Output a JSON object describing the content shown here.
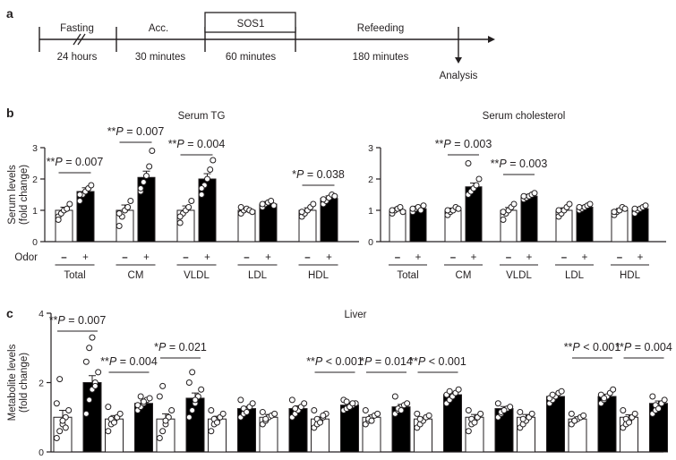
{
  "panel_a": {
    "letter": "a",
    "phases": [
      {
        "label": "Fasting",
        "duration": "24 hours"
      },
      {
        "label": "Acc.",
        "duration": "30 minutes"
      },
      {
        "label": "SOS1",
        "duration": "60 minutes"
      },
      {
        "label": "Refeeding",
        "duration": "180 minutes"
      }
    ],
    "end_label": "Analysis"
  },
  "panel_b": {
    "letter": "b"
  },
  "panel_c": {
    "letter": "c"
  },
  "odor_label": "Odor",
  "minus_sign": "–",
  "plus_sign": "+",
  "colors": {
    "ink": "#231f20",
    "odor_minus_fill": "#ffffff",
    "odor_plus_fill": "#000000"
  },
  "chart_data": [
    {
      "type": "bar",
      "title": "Serum TG",
      "ylabel": "Serum levels (fold change)",
      "ylim": [
        0,
        3
      ],
      "yticks": [
        "0",
        "1",
        "2",
        "3"
      ],
      "categories": [
        "Total",
        "CM",
        "VLDL",
        "LDL",
        "HDL"
      ],
      "series": [
        {
          "name": "–",
          "values": [
            1.0,
            1.0,
            1.0,
            1.0,
            1.0
          ],
          "errors": [
            0.1,
            0.17,
            0.14,
            0.05,
            0.08
          ]
        },
        {
          "name": "+",
          "values": [
            1.6,
            2.05,
            2.0,
            1.2,
            1.38
          ],
          "errors": [
            0.12,
            0.2,
            0.17,
            0.06,
            0.08
          ]
        }
      ],
      "points": [
        [
          [
            0.8,
            0.9,
            1.0,
            1.05,
            1.2,
            0.7
          ],
          [
            1.3,
            1.5,
            1.6,
            1.7,
            1.8,
            1.5
          ]
        ],
        [
          [
            0.5,
            0.8,
            1.0,
            1.1,
            1.3,
            0.9
          ],
          [
            1.6,
            1.9,
            2.1,
            2.4,
            2.9,
            1.7
          ]
        ],
        [
          [
            0.6,
            0.9,
            1.0,
            1.1,
            1.3,
            0.8
          ],
          [
            1.5,
            1.8,
            2.0,
            2.3,
            2.6,
            1.7
          ]
        ],
        [
          [
            0.9,
            1.0,
            1.05,
            1.0,
            0.95,
            1.1
          ],
          [
            1.1,
            1.2,
            1.25,
            1.3,
            1.15,
            1.2
          ]
        ],
        [
          [
            0.8,
            0.9,
            1.0,
            1.1,
            1.2,
            0.95
          ],
          [
            1.2,
            1.3,
            1.4,
            1.5,
            1.45,
            1.35
          ]
        ]
      ],
      "annotations": [
        {
          "stars": "**",
          "text": " = 0.007",
          "pair": 0
        },
        {
          "stars": "**",
          "text": " = 0.007",
          "pair": 1
        },
        {
          "stars": "**",
          "text": " = 0.004",
          "pair": 2
        },
        {
          "stars": "*",
          "text": " = 0.038",
          "pair": 4
        }
      ]
    },
    {
      "type": "bar",
      "title": "Serum cholesterol",
      "ylim": [
        0,
        3
      ],
      "yticks": [
        "0",
        "1",
        "2",
        "3"
      ],
      "categories": [
        "Total",
        "CM",
        "VLDL",
        "LDL",
        "HDL"
      ],
      "series": [
        {
          "name": "–",
          "values": [
            1.0,
            1.0,
            1.0,
            1.0,
            1.0
          ],
          "errors": [
            0.05,
            0.07,
            0.09,
            0.08,
            0.06
          ]
        },
        {
          "name": "+",
          "values": [
            1.05,
            1.75,
            1.45,
            1.1,
            1.05
          ],
          "errors": [
            0.05,
            0.12,
            0.06,
            0.05,
            0.05
          ]
        }
      ],
      "points": [
        [
          [
            0.9,
            1.0,
            1.05,
            1.1,
            0.95,
            1.0
          ],
          [
            0.95,
            1.05,
            1.1,
            1.0,
            1.15,
            1.05
          ]
        ],
        [
          [
            0.85,
            0.95,
            1.0,
            1.1,
            1.05,
            1.0
          ],
          [
            1.5,
            1.6,
            1.7,
            1.8,
            2.0,
            2.5
          ]
        ],
        [
          [
            0.7,
            0.9,
            1.0,
            1.1,
            1.2,
            0.95
          ],
          [
            1.35,
            1.4,
            1.45,
            1.5,
            1.55,
            1.45
          ]
        ],
        [
          [
            0.8,
            0.9,
            1.0,
            1.1,
            1.2,
            1.0
          ],
          [
            1.0,
            1.05,
            1.1,
            1.15,
            1.2,
            1.1
          ]
        ],
        [
          [
            0.85,
            0.95,
            1.0,
            1.1,
            1.05,
            0.95
          ],
          [
            0.9,
            1.0,
            1.05,
            1.1,
            1.15,
            1.05
          ]
        ]
      ],
      "annotations": [
        {
          "stars": "**",
          "text": " = 0.003",
          "pair": 1
        },
        {
          "stars": "**",
          "text": " = 0.003",
          "pair": 2
        }
      ]
    },
    {
      "type": "bar",
      "title": "Liver",
      "ylabel": "Metabolite levels (fold change)",
      "ylim": [
        0,
        4
      ],
      "yticks": [
        "0",
        "2",
        "4"
      ],
      "groups": 12,
      "series": [
        {
          "name": "–",
          "values": [
            1.0,
            0.95,
            0.95,
            0.95,
            1.0,
            0.95,
            1.0,
            0.95,
            1.0,
            1.0,
            0.95,
            1.0
          ],
          "errors": [
            0.2,
            0.1,
            0.15,
            0.08,
            0.08,
            0.06,
            0.06,
            0.05,
            0.08,
            0.08,
            0.06,
            0.07
          ]
        },
        {
          "name": "+",
          "values": [
            2.0,
            1.4,
            1.55,
            1.25,
            1.25,
            1.35,
            1.3,
            1.65,
            1.25,
            1.6,
            1.6,
            1.4
          ],
          "errors": [
            0.2,
            0.08,
            0.15,
            0.06,
            0.08,
            0.06,
            0.07,
            0.06,
            0.06,
            0.07,
            0.06,
            0.07
          ]
        }
      ],
      "points": [
        [
          [
            0.4,
            0.6,
            0.8,
            1.0,
            1.2,
            1.4,
            2.1,
            0.9,
            0.7
          ],
          [
            1.1,
            1.5,
            1.8,
            2.0,
            2.3,
            2.6,
            3.0,
            3.3,
            1.9
          ]
        ],
        [
          [
            0.6,
            0.8,
            0.9,
            1.0,
            1.1,
            1.3,
            0.95,
            0.85
          ],
          [
            1.2,
            1.3,
            1.4,
            1.5,
            1.55,
            1.35,
            1.6,
            1.45
          ]
        ],
        [
          [
            0.4,
            0.6,
            0.8,
            1.0,
            1.2,
            1.6,
            1.9,
            0.9
          ],
          [
            1.0,
            1.2,
            1.4,
            1.6,
            1.8,
            2.0,
            2.3,
            1.5
          ]
        ],
        [
          [
            0.6,
            0.8,
            0.9,
            1.0,
            1.1,
            1.2,
            0.95,
            0.85
          ],
          [
            1.0,
            1.1,
            1.2,
            1.3,
            1.4,
            1.5,
            1.25,
            1.15
          ]
        ],
        [
          [
            0.8,
            0.9,
            1.0,
            1.05,
            1.1,
            1.15,
            0.95
          ],
          [
            1.0,
            1.1,
            1.2,
            1.3,
            1.4,
            1.5,
            1.25
          ]
        ],
        [
          [
            0.7,
            0.8,
            0.9,
            1.0,
            1.1,
            1.2,
            0.95,
            0.85,
            1.05
          ],
          [
            1.2,
            1.25,
            1.3,
            1.35,
            1.4,
            1.5,
            1.45,
            1.3,
            1.4
          ]
        ],
        [
          [
            0.8,
            0.9,
            1.0,
            1.05,
            1.1,
            1.2,
            0.95,
            0.9
          ],
          [
            1.1,
            1.2,
            1.3,
            1.35,
            1.4,
            1.6,
            1.25,
            1.2
          ]
        ],
        [
          [
            0.7,
            0.8,
            0.9,
            1.0,
            1.05,
            1.1,
            0.95
          ],
          [
            1.4,
            1.5,
            1.6,
            1.7,
            1.8,
            1.65,
            1.75
          ]
        ],
        [
          [
            0.6,
            0.8,
            0.9,
            1.0,
            1.1,
            1.2,
            0.95,
            0.85
          ],
          [
            1.0,
            1.1,
            1.2,
            1.25,
            1.3,
            1.4,
            1.15,
            1.2
          ]
        ],
        [
          [
            0.7,
            0.8,
            0.9,
            1.0,
            1.1,
            1.15,
            0.95
          ],
          [
            1.4,
            1.5,
            1.6,
            1.7,
            1.75,
            1.55,
            1.65
          ]
        ],
        [
          [
            0.8,
            0.9,
            0.95,
            1.0,
            1.05,
            1.1,
            0.9
          ],
          [
            1.4,
            1.5,
            1.6,
            1.7,
            1.8,
            1.65,
            1.55
          ]
        ],
        [
          [
            0.7,
            0.8,
            0.9,
            1.0,
            1.1,
            1.2,
            0.95,
            0.85
          ],
          [
            1.1,
            1.2,
            1.3,
            1.4,
            1.5,
            1.6,
            1.35,
            1.25
          ]
        ]
      ],
      "annotations": [
        {
          "stars": "**",
          "text": " = 0.007",
          "pair": 0
        },
        {
          "stars": "**",
          "text": " = 0.004",
          "pair": 1
        },
        {
          "stars": "*",
          "text": " = 0.021",
          "pair": 2
        },
        {
          "stars": "**",
          "text": " < 0.001",
          "pair": 5
        },
        {
          "stars": "*",
          "text": " = 0.014",
          "pair": 6
        },
        {
          "stars": "**",
          "text": " < 0.001",
          "pair": 7
        },
        {
          "stars": "**",
          "text": " < 0.001",
          "pair": 10
        },
        {
          "stars": "**",
          "text": " = 0.004",
          "pair": 11
        }
      ]
    }
  ]
}
